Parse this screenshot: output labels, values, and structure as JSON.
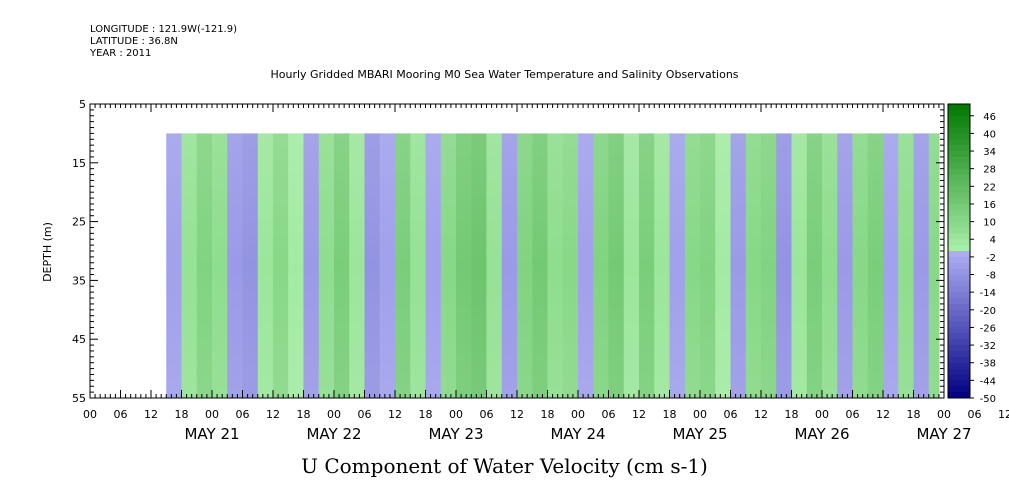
{
  "meta": {
    "longitude": "LONGITUDE : 121.9W(-121.9)",
    "latitude": "LATITUDE : 36.8N",
    "year": "YEAR : 2011"
  },
  "chart_data": {
    "type": "heatmap",
    "title": "Hourly Gridded MBARI Mooring M0 Sea Water Temperature and Salinity Observations",
    "xlabel": "U Component of Water Velocity (cm s-1)",
    "ylabel": "DEPTH (m)",
    "y_ticks": [
      5,
      15,
      25,
      35,
      45,
      55
    ],
    "ylim": [
      5,
      55
    ],
    "y_data_range": [
      10,
      55
    ],
    "x_hour_ticks": [
      "00",
      "06",
      "12",
      "18",
      "00",
      "06",
      "12",
      "18",
      "00",
      "06",
      "12",
      "18",
      "00",
      "06",
      "12",
      "18",
      "00",
      "06",
      "12",
      "18",
      "00",
      "06",
      "12",
      "18",
      "00",
      "06",
      "12",
      "18",
      "00",
      "06",
      "12",
      "18"
    ],
    "x_day_labels": [
      "MAY 21",
      "MAY 22",
      "MAY 23",
      "MAY 24",
      "MAY 25",
      "MAY 26",
      "MAY 27"
    ],
    "x_range_hours": [
      -12,
      156
    ],
    "data_start_hour": 3,
    "data_end_hour": 155,
    "colorbar_labels": [
      "46",
      "40",
      "34",
      "28",
      "22",
      "16",
      "10",
      "4",
      "-2",
      "-8",
      "-14",
      "-20",
      "-26",
      "-32",
      "-38",
      "-44",
      "-50"
    ],
    "colorbar_range": [
      -50,
      50
    ],
    "columns": [
      {
        "hour": 3,
        "value": -4
      },
      {
        "hour": 6,
        "value": 6
      },
      {
        "hour": 9,
        "value": 12
      },
      {
        "hour": 12,
        "value": 8
      },
      {
        "hour": 15,
        "value": -6
      },
      {
        "hour": 18,
        "value": -8
      },
      {
        "hour": 21,
        "value": 4
      },
      {
        "hour": 24,
        "value": 10
      },
      {
        "hour": 27,
        "value": 2
      },
      {
        "hour": 30,
        "value": -6
      },
      {
        "hour": 33,
        "value": 8
      },
      {
        "hour": 36,
        "value": 14
      },
      {
        "hour": 39,
        "value": 4
      },
      {
        "hour": 42,
        "value": -8
      },
      {
        "hour": 45,
        "value": -4
      },
      {
        "hour": 48,
        "value": 14
      },
      {
        "hour": 51,
        "value": 6
      },
      {
        "hour": 54,
        "value": -4
      },
      {
        "hour": 57,
        "value": 10
      },
      {
        "hour": 60,
        "value": 16
      },
      {
        "hour": 63,
        "value": 18
      },
      {
        "hour": 66,
        "value": 6
      },
      {
        "hour": 69,
        "value": -6
      },
      {
        "hour": 72,
        "value": 12
      },
      {
        "hour": 75,
        "value": 16
      },
      {
        "hour": 78,
        "value": 8
      },
      {
        "hour": 81,
        "value": 10
      },
      {
        "hour": 84,
        "value": -4
      },
      {
        "hour": 87,
        "value": 12
      },
      {
        "hour": 90,
        "value": 16
      },
      {
        "hour": 93,
        "value": 4
      },
      {
        "hour": 96,
        "value": 14
      },
      {
        "hour": 99,
        "value": 4
      },
      {
        "hour": 102,
        "value": -4
      },
      {
        "hour": 105,
        "value": 10
      },
      {
        "hour": 108,
        "value": 12
      },
      {
        "hour": 111,
        "value": 2
      },
      {
        "hour": 114,
        "value": -6
      },
      {
        "hour": 117,
        "value": 10
      },
      {
        "hour": 120,
        "value": 12
      },
      {
        "hour": 123,
        "value": -8
      },
      {
        "hour": 126,
        "value": 4
      },
      {
        "hour": 129,
        "value": 14
      },
      {
        "hour": 132,
        "value": 8
      },
      {
        "hour": 135,
        "value": -6
      },
      {
        "hour": 138,
        "value": 10
      },
      {
        "hour": 141,
        "value": 14
      },
      {
        "hour": 144,
        "value": -4
      },
      {
        "hour": 147,
        "value": 8
      },
      {
        "hour": 150,
        "value": -6
      },
      {
        "hour": 153,
        "value": 10
      }
    ],
    "grid": false,
    "legend": "colorbar right"
  }
}
